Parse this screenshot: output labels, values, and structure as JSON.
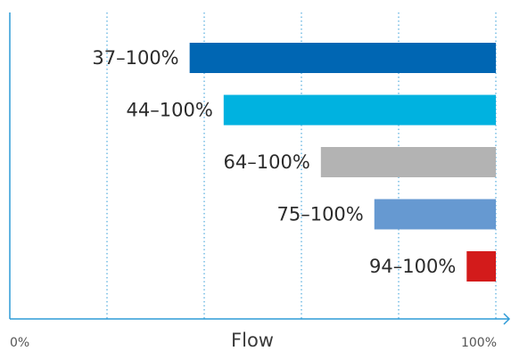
{
  "chart_data": {
    "type": "bar",
    "orientation": "horizontal",
    "title": "",
    "xlabel": "Flow",
    "ylabel": "",
    "xlim": [
      0,
      100
    ],
    "x_tick_labels": [
      "0%",
      "100%"
    ],
    "grid": true,
    "legend": "none",
    "bars": [
      {
        "label": "37–100%",
        "start": 37,
        "end": 100,
        "color": "#0066b3"
      },
      {
        "label": "44–100%",
        "start": 44,
        "end": 100,
        "color": "#00b2e0"
      },
      {
        "label": "64–100%",
        "start": 64,
        "end": 100,
        "color": "#b3b3b3"
      },
      {
        "label": "75–100%",
        "start": 75,
        "end": 100,
        "color": "#6699d1"
      },
      {
        "label": "94–100%",
        "start": 94,
        "end": 100,
        "color": "#d31b1b"
      }
    ],
    "axis_color": "#2f9bd7",
    "grid_color": "#2f9bd7"
  }
}
